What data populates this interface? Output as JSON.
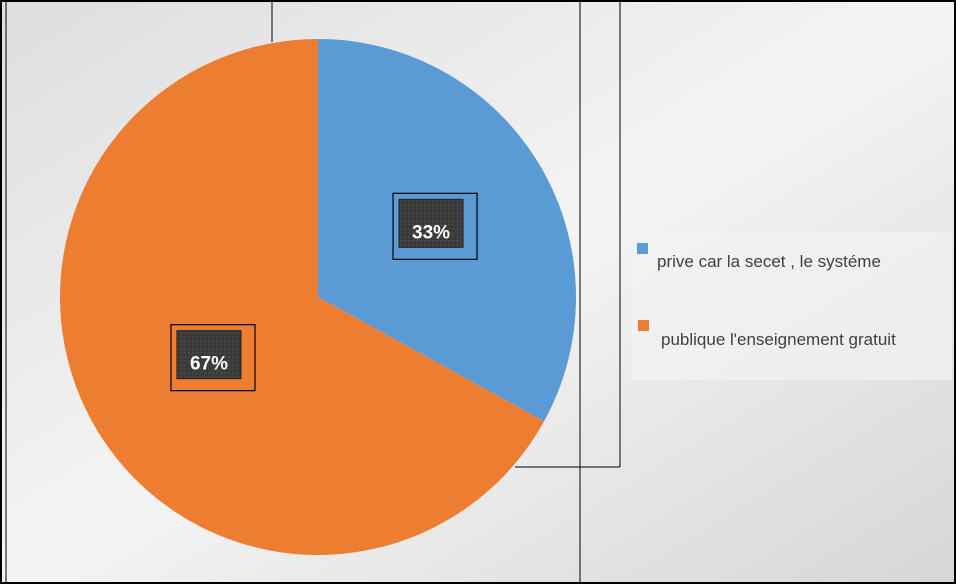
{
  "chart_data": {
    "type": "pie",
    "categories": [
      "prive car la secet , le systéme",
      "publique l'enseignement gratuit"
    ],
    "values": [
      33,
      67
    ],
    "value_labels": [
      "33%",
      "67%"
    ],
    "colors": [
      "#5b9bd5",
      "#ed7d31"
    ],
    "legend": "right"
  }
}
